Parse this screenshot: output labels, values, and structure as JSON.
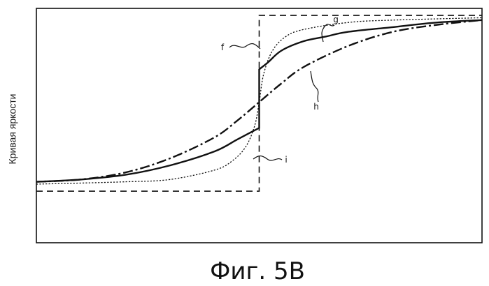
{
  "chart_data": {
    "type": "line",
    "title": "",
    "caption": "Фиг. 5B",
    "ylabel": "Кривая яркости",
    "xlabel": "",
    "xlim": [
      0,
      1
    ],
    "ylim": [
      0,
      1
    ],
    "grid": false,
    "legend": "none",
    "series": [
      {
        "name": "f",
        "style": "long-dash",
        "x": [
          0.0,
          0.5,
          0.5,
          1.0
        ],
        "y": [
          0.22,
          0.22,
          0.97,
          0.97
        ]
      },
      {
        "name": "g",
        "style": "solid",
        "x": [
          0.0,
          0.1,
          0.2,
          0.3,
          0.4,
          0.45,
          0.48,
          0.5,
          0.5,
          0.52,
          0.55,
          0.6,
          0.65,
          0.7,
          0.8,
          0.9,
          1.0
        ],
        "y": [
          0.26,
          0.27,
          0.29,
          0.33,
          0.39,
          0.44,
          0.47,
          0.49,
          0.74,
          0.77,
          0.82,
          0.86,
          0.88,
          0.9,
          0.92,
          0.94,
          0.95
        ]
      },
      {
        "name": "h",
        "style": "dash-dot",
        "x": [
          0.0,
          0.1,
          0.2,
          0.3,
          0.4,
          0.45,
          0.5,
          0.55,
          0.6,
          0.7,
          0.8,
          0.9,
          1.0
        ],
        "y": [
          0.26,
          0.27,
          0.3,
          0.36,
          0.45,
          0.52,
          0.6,
          0.68,
          0.75,
          0.84,
          0.9,
          0.93,
          0.95
        ]
      },
      {
        "name": "i",
        "style": "dotted",
        "x": [
          0.0,
          0.2,
          0.3,
          0.4,
          0.44,
          0.47,
          0.49,
          0.5,
          0.51,
          0.53,
          0.56,
          0.6,
          0.7,
          0.8,
          1.0
        ],
        "y": [
          0.25,
          0.26,
          0.27,
          0.31,
          0.35,
          0.41,
          0.5,
          0.6,
          0.72,
          0.82,
          0.88,
          0.91,
          0.94,
          0.95,
          0.96
        ]
      }
    ]
  }
}
